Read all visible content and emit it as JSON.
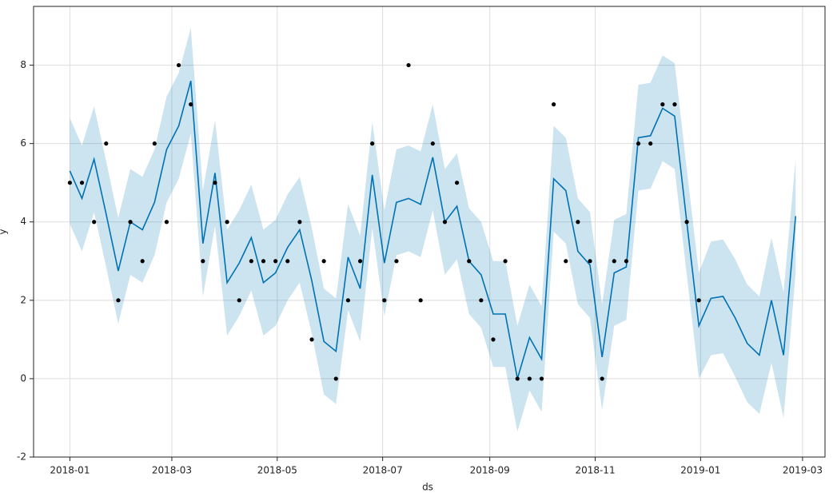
{
  "chart_data": {
    "type": "forecast",
    "xlabel": "ds",
    "ylabel": "y",
    "xlim": [
      -21,
      437
    ],
    "ylim": [
      -2,
      9.5
    ],
    "xticks": [
      {
        "value": 0,
        "label": "2018-01"
      },
      {
        "value": 59,
        "label": "2018-03"
      },
      {
        "value": 120,
        "label": "2018-05"
      },
      {
        "value": 181,
        "label": "2018-07"
      },
      {
        "value": 243,
        "label": "2018-09"
      },
      {
        "value": 304,
        "label": "2018-11"
      },
      {
        "value": 365,
        "label": "2019-01"
      },
      {
        "value": 424,
        "label": "2019-03"
      }
    ],
    "yticks": [
      -2,
      0,
      2,
      4,
      6,
      8
    ],
    "grid": true,
    "observed": {
      "color": "#000000",
      "x": [
        0,
        7,
        14,
        21,
        28,
        35,
        42,
        49,
        56,
        63,
        70,
        77,
        84,
        91,
        98,
        105,
        112,
        119,
        126,
        133,
        140,
        147,
        154,
        161,
        168,
        175,
        182,
        189,
        196,
        203,
        210,
        217,
        224,
        231,
        238,
        245,
        252,
        259,
        266,
        273,
        280,
        287,
        294,
        301,
        308,
        315,
        322,
        329,
        336,
        343,
        350,
        357,
        364
      ],
      "values": [
        5,
        5,
        4,
        6,
        2,
        4,
        3,
        6,
        4,
        8,
        7,
        3,
        5,
        4,
        2,
        3,
        3,
        3,
        3,
        4,
        1,
        3,
        0,
        2,
        3,
        6,
        2,
        3,
        8,
        2,
        6,
        4,
        5,
        3,
        2,
        1,
        3,
        0,
        0,
        0,
        7,
        3,
        4,
        3,
        0,
        3,
        3,
        6,
        6,
        7,
        7,
        4,
        2
      ]
    },
    "forecast": {
      "color": "#0072b2",
      "x": [
        0,
        7,
        14,
        21,
        28,
        35,
        42,
        49,
        56,
        63,
        70,
        77,
        84,
        91,
        98,
        105,
        112,
        119,
        126,
        133,
        140,
        147,
        154,
        161,
        168,
        175,
        182,
        189,
        196,
        203,
        210,
        217,
        224,
        231,
        238,
        245,
        252,
        259,
        266,
        273,
        280,
        287,
        294,
        301,
        308,
        315,
        322,
        329,
        336,
        343,
        350,
        357,
        364,
        371,
        378,
        385,
        392,
        399,
        406,
        413,
        420
      ],
      "values": [
        5.3,
        4.6,
        5.6,
        4.2,
        2.75,
        4.0,
        3.8,
        4.5,
        5.85,
        6.45,
        7.6,
        3.45,
        5.25,
        2.45,
        2.95,
        3.6,
        2.45,
        2.7,
        3.35,
        3.8,
        2.5,
        0.95,
        0.7,
        3.1,
        2.3,
        5.2,
        2.95,
        4.5,
        4.6,
        4.45,
        5.65,
        4.0,
        4.4,
        3.0,
        2.65,
        1.65,
        1.65,
        0.0,
        1.05,
        0.5,
        5.1,
        4.8,
        3.25,
        2.9,
        0.55,
        2.7,
        2.85,
        6.15,
        6.2,
        6.9,
        6.7,
        4.0,
        1.35,
        2.05,
        2.1,
        1.55,
        0.9,
        0.6,
        2.0,
        0.6,
        4.15
      ],
      "upper": [
        6.65,
        5.95,
        6.95,
        5.55,
        4.1,
        5.35,
        5.15,
        5.85,
        7.2,
        7.8,
        8.95,
        4.8,
        6.6,
        3.8,
        4.3,
        4.95,
        3.8,
        4.05,
        4.7,
        5.15,
        3.85,
        2.3,
        2.05,
        4.45,
        3.65,
        6.55,
        4.3,
        5.85,
        5.95,
        5.8,
        7.0,
        5.35,
        5.75,
        4.35,
        4.0,
        3.0,
        3.0,
        1.35,
        2.4,
        1.85,
        6.45,
        6.15,
        4.6,
        4.25,
        1.9,
        4.05,
        4.2,
        7.5,
        7.55,
        8.25,
        8.05,
        5.35,
        2.7,
        3.5,
        3.55,
        3.05,
        2.4,
        2.1,
        3.6,
        2.2,
        5.6
      ],
      "lower": [
        3.95,
        3.25,
        4.25,
        2.85,
        1.4,
        2.65,
        2.45,
        3.15,
        4.5,
        5.1,
        6.25,
        2.1,
        3.9,
        1.1,
        1.6,
        2.25,
        1.1,
        1.35,
        2.0,
        2.45,
        1.15,
        -0.4,
        -0.65,
        1.75,
        0.95,
        3.85,
        1.6,
        3.15,
        3.25,
        3.1,
        4.3,
        2.65,
        3.05,
        1.65,
        1.3,
        0.3,
        0.3,
        -1.35,
        -0.3,
        -0.85,
        3.75,
        3.45,
        1.9,
        1.55,
        -0.8,
        1.35,
        1.5,
        4.8,
        4.85,
        5.55,
        5.35,
        2.65,
        0.0,
        0.6,
        0.65,
        0.05,
        -0.6,
        -0.9,
        0.4,
        -1.0,
        2.7
      ]
    }
  }
}
